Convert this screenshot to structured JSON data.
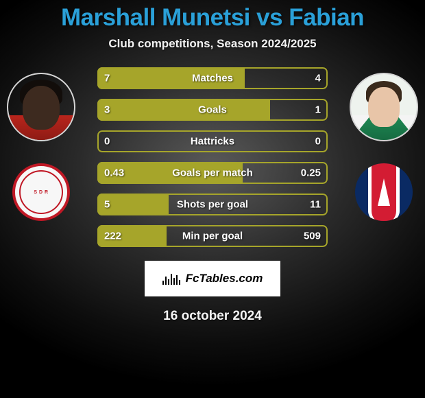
{
  "title": {
    "text": "Marshall Munetsi vs Fabian",
    "color": "#2aa0d8",
    "fontsize": 35,
    "fontweight": 800
  },
  "subtitle": {
    "text": "Club competitions, Season 2024/2025",
    "fontsize": 17,
    "color": "#f2f2f2"
  },
  "players": {
    "left": {
      "name": "Marshall Munetsi",
      "skin": "#3d2a1f",
      "hair": "#120d0a",
      "jersey": "#b9251c"
    },
    "right": {
      "name": "Fabian",
      "skin": "#e8c5a8",
      "hair": "#3a2a1c",
      "jersey": "#1f8a55"
    }
  },
  "clubs": {
    "left": {
      "name": "Stade de Reims",
      "primary": "#c01825",
      "bg": "#f7f7f7"
    },
    "right": {
      "name": "Paris Saint-Germain",
      "primary": "#0a2a63",
      "accent": "#d31c33"
    }
  },
  "bars": {
    "border_color": "#a6a52a",
    "fill_color": "#a6a52a",
    "height": 32,
    "gap": 14,
    "radius": 7,
    "label_color": "#ffffff",
    "label_fontsize": 15,
    "items": [
      {
        "label": "Matches",
        "left": "7",
        "right": "4",
        "fill_pct": 64
      },
      {
        "label": "Goals",
        "left": "3",
        "right": "1",
        "fill_pct": 75
      },
      {
        "label": "Hattricks",
        "left": "0",
        "right": "0",
        "fill_pct": 0
      },
      {
        "label": "Goals per match",
        "left": "0.43",
        "right": "0.25",
        "fill_pct": 63
      },
      {
        "label": "Shots per goal",
        "left": "5",
        "right": "11",
        "fill_pct": 31
      },
      {
        "label": "Min per goal",
        "left": "222",
        "right": "509",
        "fill_pct": 30
      }
    ]
  },
  "logo": {
    "brand": "FcTables.com"
  },
  "date": {
    "text": "16 october 2024",
    "fontsize": 19
  },
  "background": {
    "center": "#5a5a5a",
    "edge": "#000000"
  }
}
